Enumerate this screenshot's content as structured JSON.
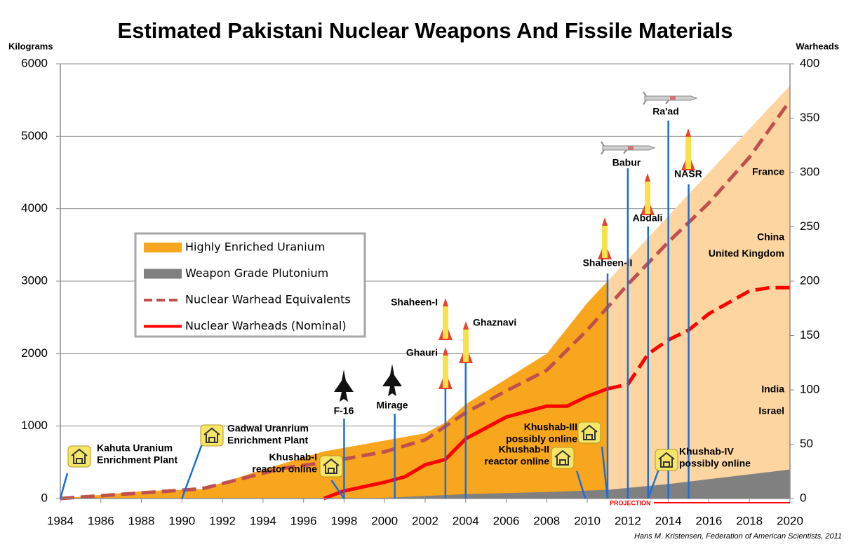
{
  "chart_data": {
    "type": "area",
    "title": "Estimated Pakistani Nuclear Weapons And Fissile Materials",
    "y_axis_label": "Kilograms",
    "y2_axis_label": "Warheads",
    "xlim": [
      1984,
      2020
    ],
    "xticks": [
      1984,
      1986,
      1988,
      1990,
      1992,
      1994,
      1996,
      1998,
      2000,
      2002,
      2004,
      2006,
      2008,
      2010,
      2012,
      2014,
      2016,
      2018,
      2020
    ],
    "ylim": [
      0,
      6000
    ],
    "yticks": [
      0,
      1000,
      2000,
      3000,
      4000,
      5000,
      6000
    ],
    "y2lim": [
      0,
      400
    ],
    "y2ticks": [
      0,
      50,
      100,
      150,
      200,
      250,
      300,
      350,
      400
    ],
    "grid": true,
    "legend": "center left",
    "series": [
      {
        "name": "Highly Enriched Uranium",
        "type": "area",
        "color": "#f9a61f",
        "x": [
          1984,
          1986,
          1988,
          1991,
          1994,
          1997,
          2002,
          2003,
          2004,
          2008,
          2010,
          2011
        ],
        "values": [
          0,
          50,
          100,
          130,
          400,
          650,
          900,
          1050,
          1300,
          2000,
          2700,
          3000
        ]
      },
      {
        "name": "Weapon Grade Plutonium",
        "type": "area",
        "color": "#808080",
        "x": [
          1998,
          2000,
          2004,
          2008,
          2011,
          2014,
          2017,
          2020
        ],
        "values": [
          0,
          10,
          60,
          90,
          120,
          200,
          300,
          400
        ]
      },
      {
        "name": "Nuclear Warhead Equivalents",
        "type": "line",
        "style": "dashed",
        "axis": "y2",
        "color": "#c0504d",
        "x": [
          1984,
          1991,
          1995,
          1997,
          2000,
          2002,
          2004,
          2006,
          2008,
          2010,
          2012,
          2014,
          2016,
          2018,
          2020
        ],
        "values": [
          0,
          9,
          28,
          33,
          43,
          54,
          79,
          99,
          118,
          155,
          197,
          236,
          272,
          314,
          366
        ]
      },
      {
        "name": "Nuclear Warheads (Nominal)",
        "type": "line",
        "style": "solid",
        "axis": "y2",
        "color": "#ff0000",
        "x": [
          1997,
          1998,
          2000,
          2001,
          2002,
          2003,
          2004,
          2006,
          2008,
          2009,
          2010,
          2011,
          2012,
          2013,
          2014,
          2015,
          2016,
          2018,
          2019,
          2020
        ],
        "values": [
          0,
          7,
          15,
          20,
          31,
          36,
          55,
          75,
          85,
          85,
          94,
          101,
          105,
          133,
          146,
          155,
          170,
          191,
          194,
          194
        ]
      }
    ],
    "projection": {
      "label": "PROJECTION",
      "start": 2011,
      "color": "#ff0000",
      "fill_color": "#fdd5a0",
      "x": [
        2011,
        2012,
        2014,
        2016,
        2018,
        2020
      ],
      "values": [
        3000,
        3300,
        3900,
        4500,
        5100,
        5700
      ]
    },
    "reference_levels": [
      {
        "label": "France",
        "value": 300
      },
      {
        "label": "China",
        "value": 240
      },
      {
        "label": "United Kingdom",
        "value": 225
      },
      {
        "label": "India",
        "value": 100
      },
      {
        "label": "Israel",
        "value": 80
      }
    ],
    "events": [
      {
        "label": [
          "Kahuta Uranium",
          "Enrichment Plant"
        ],
        "x": 1984
      },
      {
        "label": [
          "Gadwal Uranrium",
          "Enrichment Plant"
        ],
        "x": 1990
      },
      {
        "label": [
          "Khushab-I",
          "reactor online"
        ],
        "x": 1998
      },
      {
        "label": [
          "F-16"
        ],
        "x": 1998
      },
      {
        "label": [
          "Mirage"
        ],
        "x": 2000.5
      },
      {
        "label": [
          "Ghauri"
        ],
        "x": 2003
      },
      {
        "label": [
          "Shaheen-I"
        ],
        "x": 2003
      },
      {
        "label": [
          "Ghaznavi"
        ],
        "x": 2004
      },
      {
        "label": [
          "Khushab-II",
          "reactor online"
        ],
        "x": 2009.9
      },
      {
        "label": [
          "Khushab-III",
          "possibly online"
        ],
        "x": 2011
      },
      {
        "label": [
          "Shaheen-II"
        ],
        "x": 2011
      },
      {
        "label": [
          "Babur"
        ],
        "x": 2012
      },
      {
        "label": [
          "Abdali"
        ],
        "x": 2013
      },
      {
        "label": [
          "Ra'ad"
        ],
        "x": 2014
      },
      {
        "label": [
          "NASR"
        ],
        "x": 2015
      },
      {
        "label": [
          "Khushab-IV",
          "possibly online"
        ],
        "x": 2013
      }
    ],
    "source": "Hans M. Kristensen, Federation of American Scientists, 2011"
  }
}
